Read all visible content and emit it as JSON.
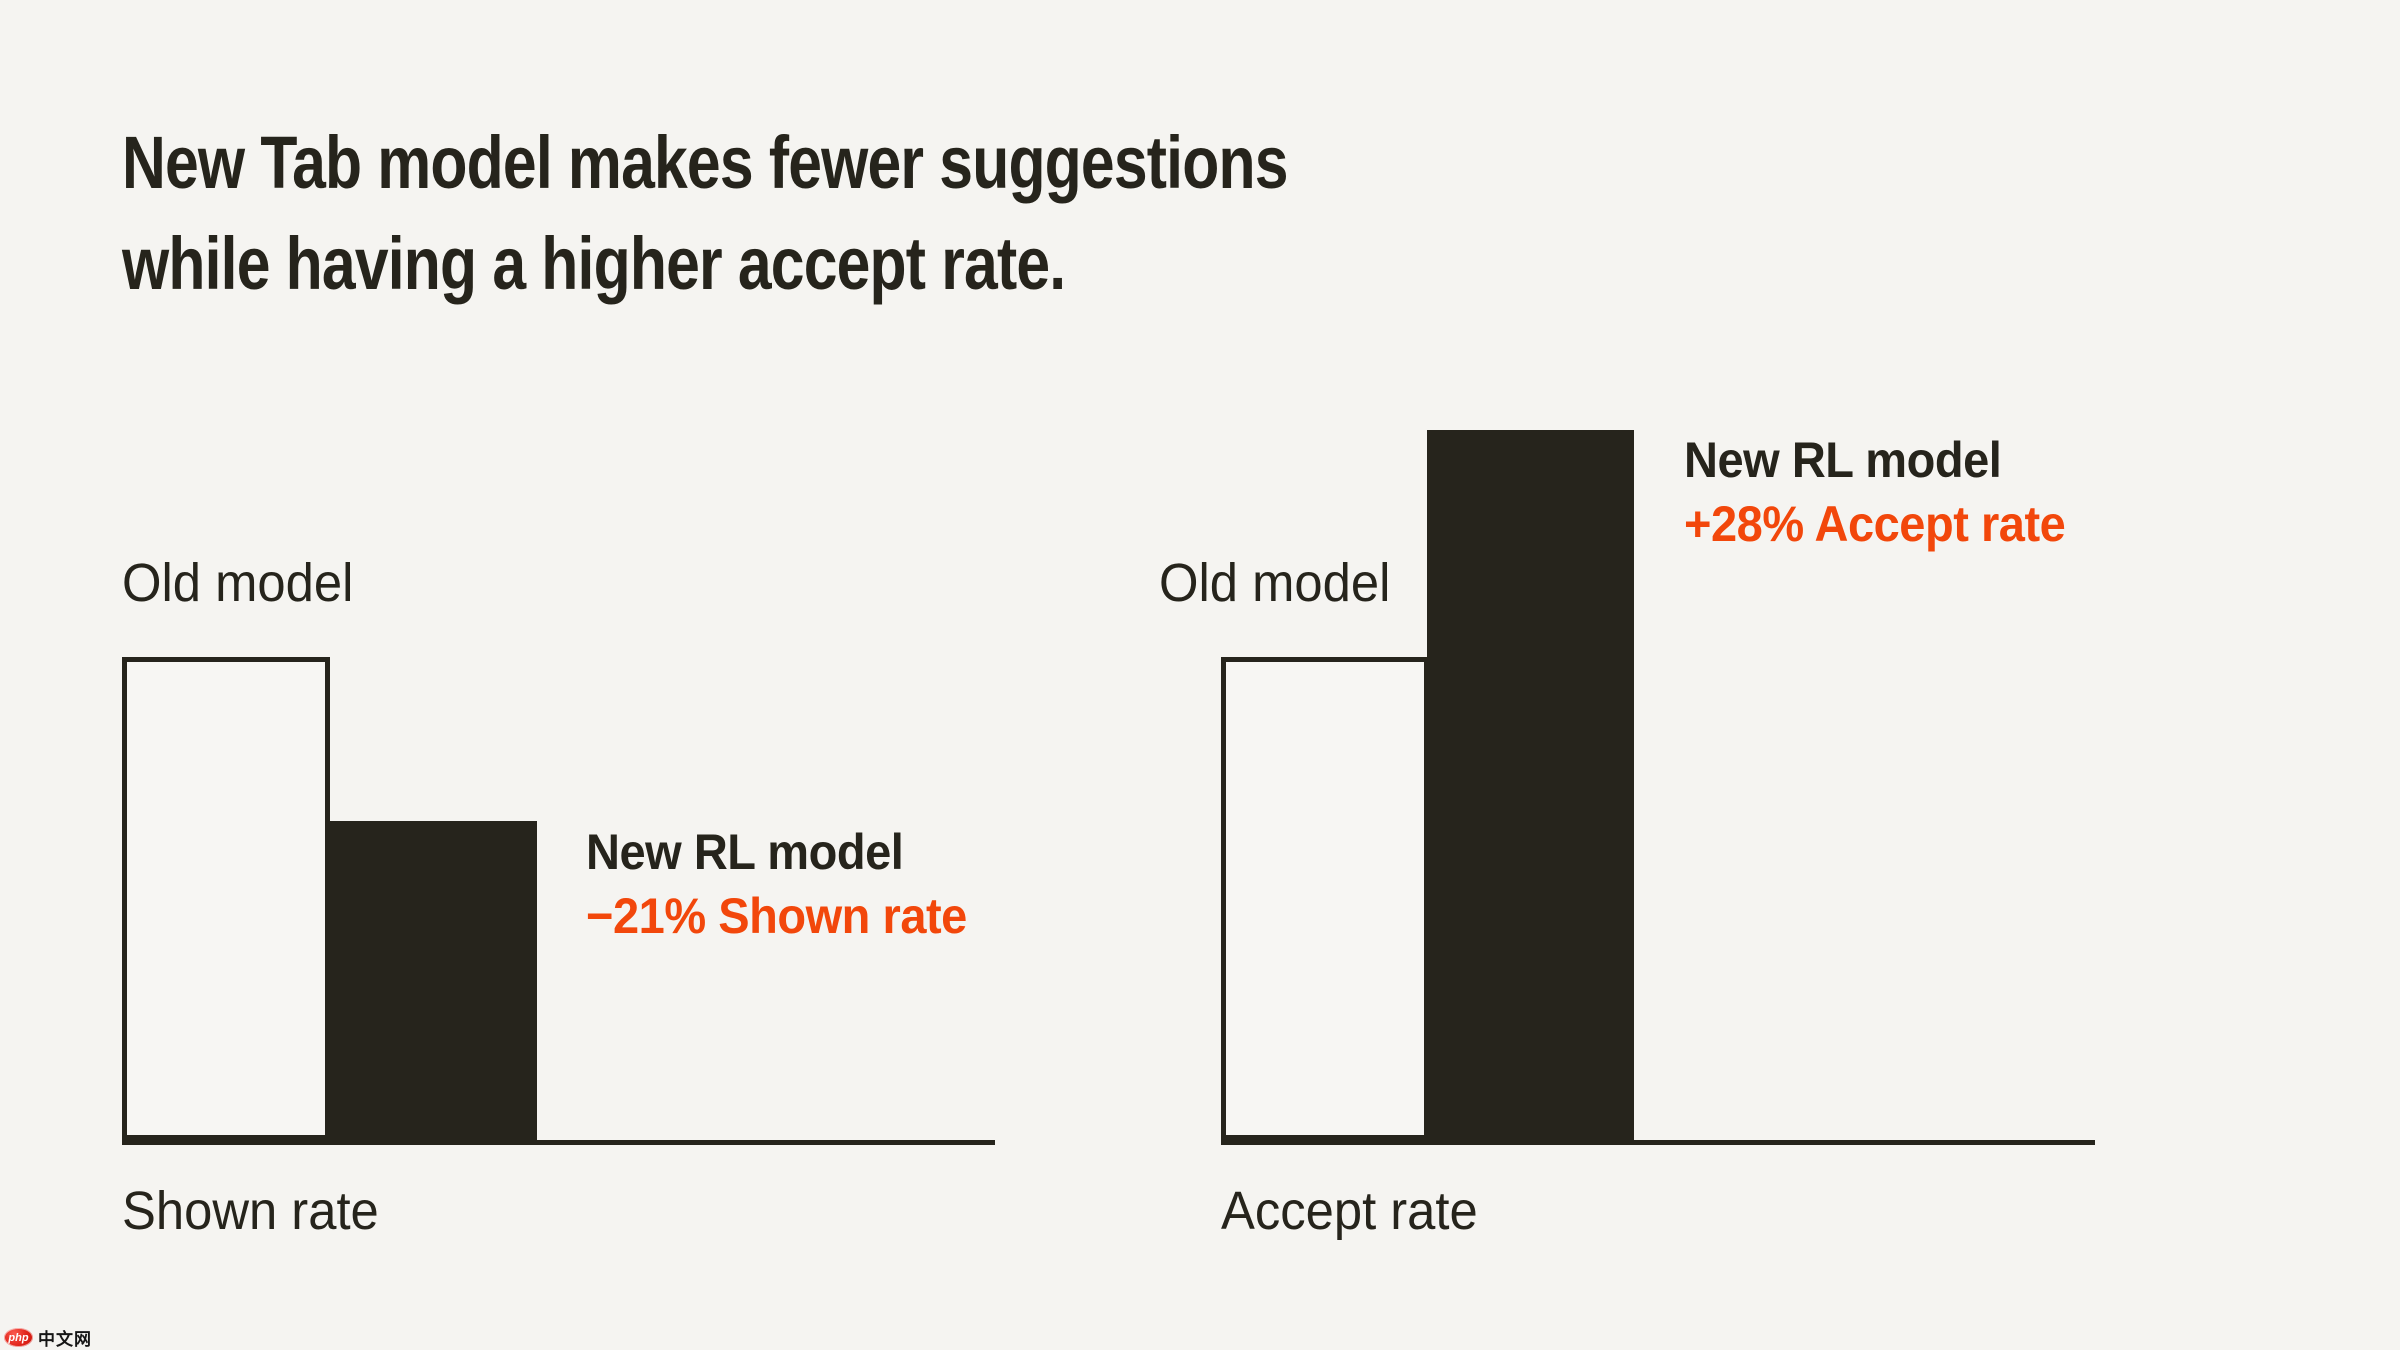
{
  "page": {
    "background": "#f5f4f1",
    "ink": "#26241c",
    "accent_orange": "#f2470b",
    "bar_outline_fill": "#f7f6f3"
  },
  "header": {
    "title_line1": "New Tab model makes fewer suggestions",
    "title_line2": "while having a higher accept rate."
  },
  "watermark": {
    "badge": "php",
    "text": "中文网"
  },
  "chart_data": [
    {
      "type": "bar",
      "title": "Shown rate",
      "categories": [
        "Old model",
        "New RL model"
      ],
      "values": [
        100,
        66
      ],
      "unit": "relative height, Old model = 100 (no numeric axis shown)",
      "annotation": "−21% Shown rate",
      "xlabel": "Shown rate",
      "ylabel": "",
      "grid": false,
      "legend": "none",
      "bar_styles": [
        "outlined (background fill, dark border)",
        "solid dark #26241c"
      ],
      "annotation_colors": {
        "title": "#26241c",
        "delta": "#f2470b"
      }
    },
    {
      "type": "bar",
      "title": "Accept rate",
      "categories": [
        "Old model",
        "New RL model"
      ],
      "values": [
        100,
        147
      ],
      "unit": "relative height, Old model = 100 (no numeric axis shown)",
      "annotation": "+28% Accept rate",
      "xlabel": "Accept rate",
      "ylabel": "",
      "grid": false,
      "legend": "none",
      "bar_styles": [
        "outlined (background fill, dark border)",
        "solid dark #26241c"
      ],
      "annotation_colors": {
        "title": "#26241c",
        "delta": "#f2470b"
      }
    }
  ]
}
